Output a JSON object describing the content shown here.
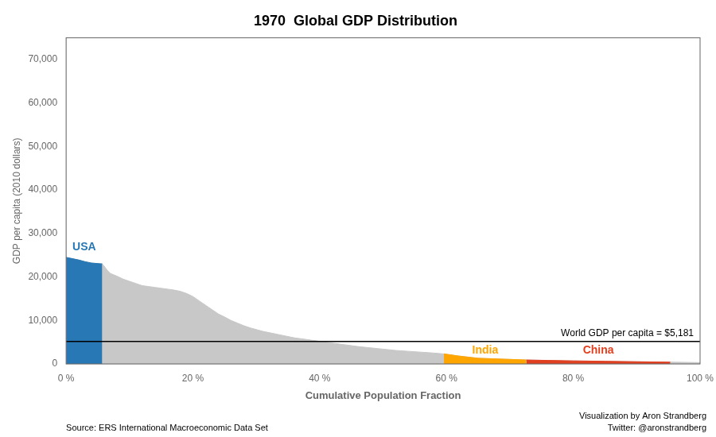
{
  "chart_data": {
    "type": "area",
    "title": "1970  Global GDP Distribution",
    "x_label": "Cumulative Population Fraction",
    "y_label": "GDP per capita (2010 dollars)",
    "xlim": [
      0,
      1.0
    ],
    "ylim": [
      0,
      75000
    ],
    "xticks": [
      {
        "value": 0,
        "label": "0 %"
      },
      {
        "value": 0.2,
        "label": "20 %"
      },
      {
        "value": 0.4,
        "label": "40 %"
      },
      {
        "value": 0.6,
        "label": "60 %"
      },
      {
        "value": 0.8,
        "label": "80 %"
      },
      {
        "value": 1.0,
        "label": "100 %"
      }
    ],
    "yticks": [
      0,
      {
        "value": 10000,
        "label": "10,000"
      },
      {
        "value": 20000,
        "label": "20,000"
      },
      {
        "value": 30000,
        "label": "30,000"
      },
      {
        "value": 40000,
        "label": "40,000"
      },
      {
        "value": 50000,
        "label": "50,000"
      },
      {
        "value": 60000,
        "label": "60,000"
      },
      {
        "value": 70000,
        "label": "70,000"
      }
    ],
    "grid": false,
    "x": [
      0.0,
      0.01,
      0.02,
      0.03,
      0.04,
      0.057,
      0.06,
      0.065,
      0.07,
      0.08,
      0.09,
      0.1,
      0.11,
      0.12,
      0.13,
      0.14,
      0.15,
      0.16,
      0.17,
      0.18,
      0.19,
      0.2,
      0.21,
      0.22,
      0.23,
      0.24,
      0.25,
      0.26,
      0.27,
      0.28,
      0.29,
      0.3,
      0.31,
      0.32,
      0.33,
      0.34,
      0.35,
      0.36,
      0.37,
      0.38,
      0.39,
      0.4,
      0.42,
      0.44,
      0.46,
      0.48,
      0.5,
      0.52,
      0.54,
      0.56,
      0.58,
      0.596,
      0.62,
      0.65,
      0.726,
      0.76,
      0.8,
      0.85,
      0.9,
      0.953,
      0.97,
      1.0
    ],
    "series": [
      {
        "color": "#c8c8c8",
        "values": [
          24500,
          24200,
          23900,
          23500,
          23200,
          23000,
          22500,
          21500,
          20800,
          20200,
          19500,
          19000,
          18500,
          18000,
          17800,
          17600,
          17400,
          17200,
          17000,
          16700,
          16200,
          15500,
          14500,
          13500,
          12500,
          11500,
          10800,
          10000,
          9400,
          8800,
          8300,
          7900,
          7500,
          7200,
          6900,
          6600,
          6300,
          6000,
          5800,
          5600,
          5400,
          5200,
          4800,
          4400,
          4000,
          3700,
          3400,
          3100,
          2900,
          2700,
          2500,
          2300,
          1800,
          1300,
          900,
          800,
          700,
          600,
          500,
          400,
          380,
          300
        ]
      },
      {
        "name": "USA",
        "color": "#2878b5",
        "values": [
          24500,
          24200,
          23900,
          23500,
          23200,
          23000,
          null,
          null,
          null,
          null,
          null,
          null,
          null,
          null,
          null,
          null,
          null,
          null,
          null,
          null,
          null,
          null,
          null,
          null,
          null,
          null,
          null,
          null,
          null,
          null,
          null,
          null,
          null,
          null,
          null,
          null,
          null,
          null,
          null,
          null,
          null,
          null,
          null,
          null,
          null,
          null,
          null,
          null,
          null,
          null,
          null,
          null,
          null,
          null,
          null,
          null,
          null,
          null,
          null,
          null,
          null,
          null
        ]
      },
      {
        "name": "India",
        "color": "#FFA500",
        "values": [
          null,
          null,
          null,
          null,
          null,
          null,
          null,
          null,
          null,
          null,
          null,
          null,
          null,
          null,
          null,
          null,
          null,
          null,
          null,
          null,
          null,
          null,
          null,
          null,
          null,
          null,
          null,
          null,
          null,
          null,
          null,
          null,
          null,
          null,
          null,
          null,
          null,
          null,
          null,
          null,
          null,
          null,
          null,
          null,
          null,
          null,
          null,
          null,
          null,
          null,
          null,
          2300,
          1800,
          1300,
          900,
          null,
          null,
          null,
          null,
          null,
          null,
          null
        ]
      },
      {
        "name": "China",
        "color": "#e04020",
        "values": [
          null,
          null,
          null,
          null,
          null,
          null,
          null,
          null,
          null,
          null,
          null,
          null,
          null,
          null,
          null,
          null,
          null,
          null,
          null,
          null,
          null,
          null,
          null,
          null,
          null,
          null,
          null,
          null,
          null,
          null,
          null,
          null,
          null,
          null,
          null,
          null,
          null,
          null,
          null,
          null,
          null,
          null,
          null,
          null,
          null,
          null,
          null,
          null,
          null,
          null,
          null,
          null,
          null,
          null,
          900,
          800,
          700,
          600,
          500,
          400,
          null,
          null
        ]
      }
    ],
    "annotations": [
      {
        "text": "World GDP per capita = $5,181",
        "y": 5181
      },
      {
        "text": "Source: ERS International Macroeconomic Data Set"
      },
      {
        "text": "Visualization by Aron Strandberg"
      },
      {
        "text": "Twitter: @aronstrandberg"
      }
    ]
  }
}
